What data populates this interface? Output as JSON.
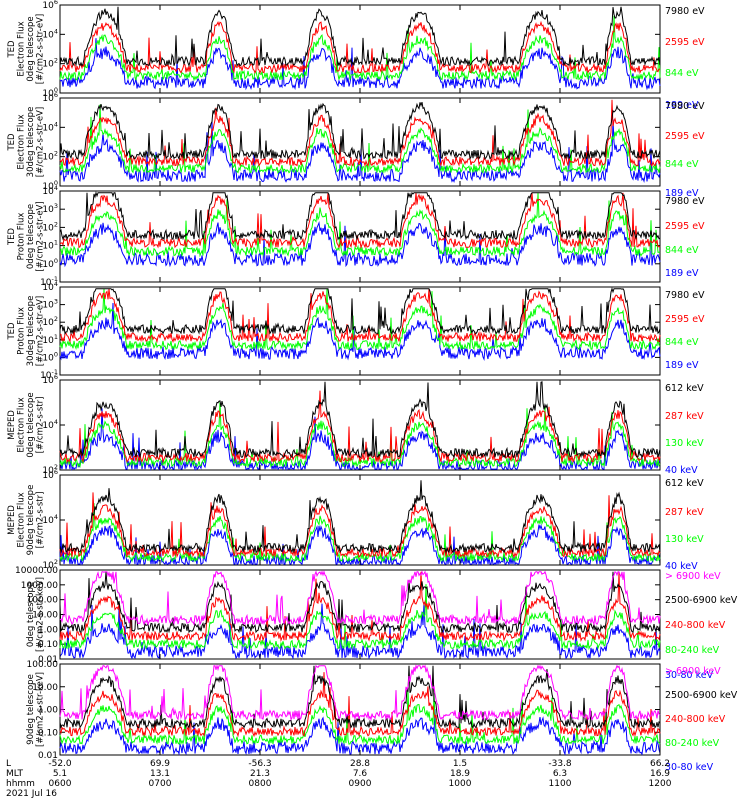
{
  "colors": {
    "black": "#000000",
    "red": "#ff0000",
    "green": "#00ff00",
    "blue": "#0000ff",
    "magenta": "#ff00ff"
  },
  "x_axis": {
    "row_labels": [
      "L",
      "MLT",
      "hhmm"
    ],
    "date": "2021 Jul 16",
    "ticks": [
      {
        "L": "-52.0",
        "MLT": "5.1",
        "hhmm": "0600"
      },
      {
        "L": "69.9",
        "MLT": "13.1",
        "hhmm": "0700"
      },
      {
        "L": "-56.3",
        "MLT": "21.3",
        "hhmm": "0800"
      },
      {
        "L": "28.8",
        "MLT": "7.6",
        "hhmm": "0900"
      },
      {
        "L": "1.5",
        "MLT": "18.9",
        "hhmm": "1000"
      },
      {
        "L": "-33.8",
        "MLT": "6.3",
        "hhmm": "1100"
      },
      {
        "L": "66.2",
        "MLT": "16.9",
        "hhmm": "1200"
      }
    ]
  },
  "chart_data": [
    {
      "type": "line",
      "panel": 1,
      "ylabel": [
        "TED",
        "Electron Flux",
        "0deg telescope",
        "[#/cm2-s-str-eV]"
      ],
      "y_scale": "log",
      "ylim": [
        1,
        1000000
      ],
      "y_ticks": [
        "10^0",
        "10^2",
        "10^4",
        "10^6"
      ],
      "series": [
        {
          "name": "7980 eV",
          "color": "#000000"
        },
        {
          "name": "2595 eV",
          "color": "#ff0000"
        },
        {
          "name": "844 eV",
          "color": "#00ff00"
        },
        {
          "name": "189 eV",
          "color": "#0000ff"
        }
      ]
    },
    {
      "type": "line",
      "panel": 2,
      "ylabel": [
        "TED",
        "Electron Flux",
        "30deg telescope",
        "[#/cm2-s-str-eV]"
      ],
      "y_scale": "log",
      "ylim": [
        1,
        1000000
      ],
      "y_ticks": [
        "10^0",
        "10^2",
        "10^4",
        "10^6"
      ],
      "series": [
        {
          "name": "7980 eV",
          "color": "#000000"
        },
        {
          "name": "2595 eV",
          "color": "#ff0000"
        },
        {
          "name": "844 eV",
          "color": "#00ff00"
        },
        {
          "name": "189 eV",
          "color": "#0000ff"
        }
      ]
    },
    {
      "type": "line",
      "panel": 3,
      "ylabel": [
        "TED",
        "Proton Flux",
        "0deg telescope",
        "[#/cm2-s-str-eV]"
      ],
      "y_scale": "log",
      "ylim": [
        0.1,
        10000
      ],
      "y_ticks": [
        "10^-1",
        "10^0",
        "10^1",
        "10^2",
        "10^3",
        "10^4"
      ],
      "series": [
        {
          "name": "7980 eV",
          "color": "#000000"
        },
        {
          "name": "2595 eV",
          "color": "#ff0000"
        },
        {
          "name": "844 eV",
          "color": "#00ff00"
        },
        {
          "name": "189 eV",
          "color": "#0000ff"
        }
      ]
    },
    {
      "type": "line",
      "panel": 4,
      "ylabel": [
        "TED",
        "Proton Flux",
        "30deg telescope",
        "[#/cm2-s-str-eV]"
      ],
      "y_scale": "log",
      "ylim": [
        0.1,
        10000
      ],
      "y_ticks": [
        "10^-1",
        "10^0",
        "10^1",
        "10^2",
        "10^3",
        "10^4"
      ],
      "series": [
        {
          "name": "7980 eV",
          "color": "#000000"
        },
        {
          "name": "2595 eV",
          "color": "#ff0000"
        },
        {
          "name": "844 eV",
          "color": "#00ff00"
        },
        {
          "name": "189 eV",
          "color": "#0000ff"
        }
      ]
    },
    {
      "type": "line",
      "panel": 5,
      "ylabel": [
        "MEPED",
        "Electron Flux",
        "0deg telescope",
        "[#/cm2-s-str]"
      ],
      "y_scale": "log",
      "ylim": [
        100,
        1000000
      ],
      "y_ticks": [
        "10^2",
        "10^4",
        "10^6"
      ],
      "series": [
        {
          "name": "612 keV",
          "color": "#000000"
        },
        {
          "name": "287 keV",
          "color": "#ff0000"
        },
        {
          "name": "130 keV",
          "color": "#00ff00"
        },
        {
          "name": "40 keV",
          "color": "#0000ff"
        }
      ]
    },
    {
      "type": "line",
      "panel": 6,
      "ylabel": [
        "MEPED",
        "Electron Flux",
        "90deg telescope",
        "[#/cm2-s-str]"
      ],
      "y_scale": "log",
      "ylim": [
        100,
        1000000
      ],
      "y_ticks": [
        "10^2",
        "10^4",
        "10^6"
      ],
      "series": [
        {
          "name": "612 keV",
          "color": "#000000"
        },
        {
          "name": "287 keV",
          "color": "#ff0000"
        },
        {
          "name": "130 keV",
          "color": "#00ff00"
        },
        {
          "name": "40 keV",
          "color": "#0000ff"
        }
      ]
    },
    {
      "type": "line",
      "panel": 7,
      "ylabel": [
        "0deg telescope",
        "[#/cm2-s-str-keV]"
      ],
      "y_scale": "log",
      "ylim": [
        0.01,
        10000
      ],
      "y_ticks": [
        "0.01",
        "0.10",
        "1.00",
        "10.00",
        "100.00",
        "1000.00",
        "10000.00"
      ],
      "series": [
        {
          "name": "> 6900 keV",
          "color": "#ff00ff"
        },
        {
          "name": "2500-6900 keV",
          "color": "#000000"
        },
        {
          "name": "240-800 keV",
          "color": "#ff0000"
        },
        {
          "name": "80-240 keV",
          "color": "#00ff00"
        },
        {
          "name": "30-80 keV",
          "color": "#0000ff"
        }
      ]
    },
    {
      "type": "line",
      "panel": 8,
      "ylabel": [
        "90deg telescope",
        "[#/cm2-s-str-keV]"
      ],
      "y_scale": "log",
      "ylim": [
        0.01,
        1000
      ],
      "y_ticks": [
        "0.01",
        "0.10",
        "1.00",
        "10.00",
        "100.00"
      ],
      "series": [
        {
          "name": "> 6900 keV",
          "color": "#ff00ff"
        },
        {
          "name": "2500-6900 keV",
          "color": "#000000"
        },
        {
          "name": "240-800 keV",
          "color": "#ff0000"
        },
        {
          "name": "80-240 keV",
          "color": "#00ff00"
        },
        {
          "name": "30-80 keV",
          "color": "#0000ff"
        }
      ]
    }
  ]
}
